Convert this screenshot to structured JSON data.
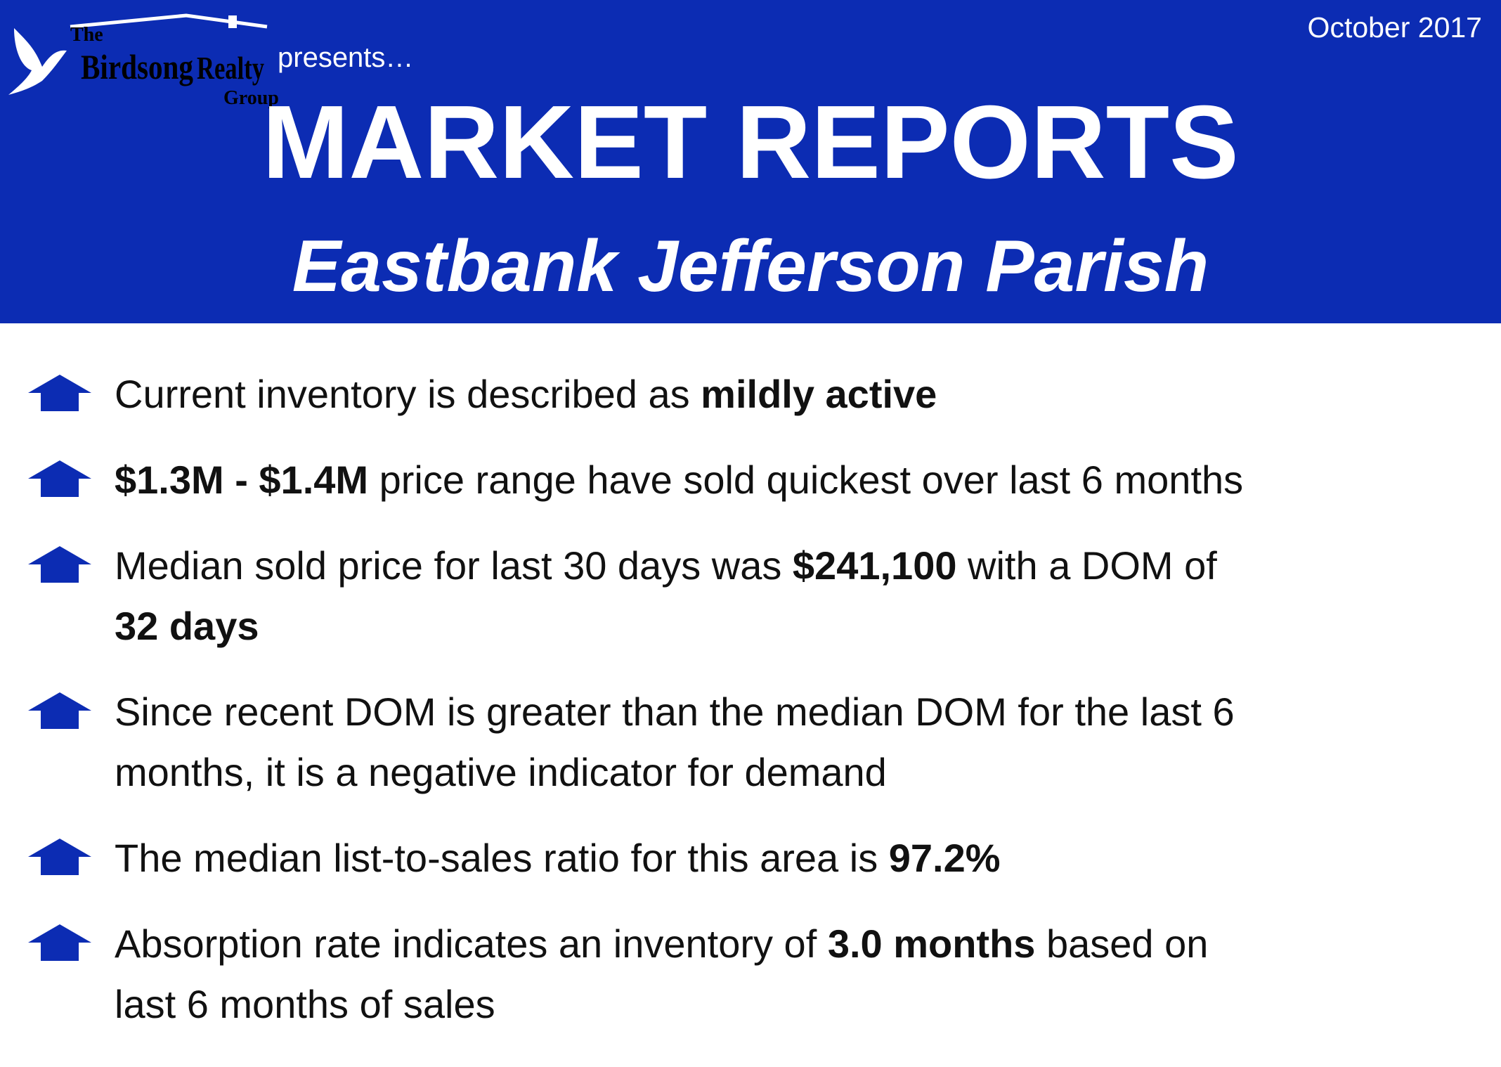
{
  "header": {
    "logo": {
      "the": "The",
      "birdsong": "Birdsong",
      "realty": "Realty",
      "group": "Group"
    },
    "presents": "presents…",
    "date": "October 2017",
    "title": "MARKET REPORTS",
    "subtitle": "Eastbank Jefferson Parish"
  },
  "bullets": [
    {
      "lines": [
        [
          {
            "text": "Current inventory is described as "
          },
          {
            "text": "mildly active",
            "bold": true
          }
        ]
      ]
    },
    {
      "lines": [
        [
          {
            "text": "$1.3M - $1.4M",
            "bold": true
          },
          {
            "text": " price range have sold quickest over last 6 months"
          }
        ]
      ]
    },
    {
      "lines": [
        [
          {
            "text": "Median sold price for last 30 days was "
          },
          {
            "text": "$241,100",
            "bold": true
          },
          {
            "text": " with a DOM of"
          }
        ],
        [
          {
            "text": "32 days",
            "bold": true
          }
        ]
      ]
    },
    {
      "lines": [
        [
          {
            "text": "Since recent DOM is greater than the median DOM for the last 6"
          }
        ],
        [
          {
            "text": "months, it is a negative indicator for demand"
          }
        ]
      ]
    },
    {
      "lines": [
        [
          {
            "text": "The median list-to-sales ratio for this area is "
          },
          {
            "text": "97.2%",
            "bold": true
          }
        ]
      ]
    },
    {
      "lines": [
        [
          {
            "text": "Absorption rate indicates an inventory of "
          },
          {
            "text": "3.0 months",
            "bold": true
          },
          {
            "text": " based on"
          }
        ],
        [
          {
            "text": "last 6 months of sales"
          }
        ]
      ]
    }
  ]
}
